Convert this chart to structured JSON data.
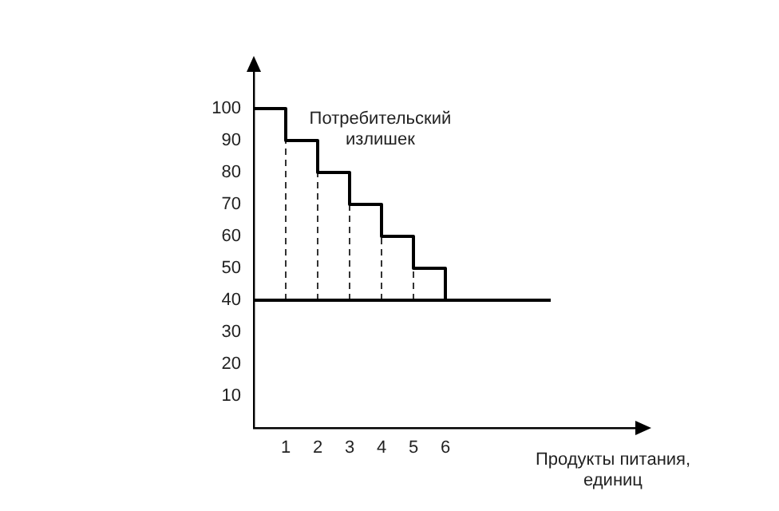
{
  "chart_data": {
    "type": "step",
    "xlabel": "Продукты питания, единиц",
    "xlim": [
      0,
      12
    ],
    "xticks": [
      1,
      2,
      3,
      4,
      5,
      6
    ],
    "ylim": [
      0,
      112
    ],
    "yticks": [
      10,
      20,
      30,
      40,
      50,
      60,
      70,
      80,
      90,
      100
    ],
    "grid": false,
    "legend": false,
    "marker": "none",
    "series": [
      {
        "color": "#000000",
        "line_style": "solid",
        "x": [
          0,
          1,
          2,
          3,
          4,
          5,
          6
        ],
        "values": [
          100,
          90,
          80,
          70,
          60,
          50,
          40
        ]
      },
      {
        "type": "line",
        "color": "#000000",
        "line_style": "solid",
        "x": [
          0,
          9.3
        ],
        "values": [
          40,
          40
        ]
      },
      {
        "type": "line",
        "color": "#000000",
        "line_style": "dashed",
        "x": [
          1,
          1
        ],
        "values": [
          40,
          90
        ]
      },
      {
        "type": "line",
        "color": "#000000",
        "line_style": "dashed",
        "x": [
          2,
          2
        ],
        "values": [
          40,
          80
        ]
      },
      {
        "type": "line",
        "color": "#000000",
        "line_style": "dashed",
        "x": [
          3,
          3
        ],
        "values": [
          40,
          70
        ]
      },
      {
        "type": "line",
        "color": "#000000",
        "line_style": "dashed",
        "x": [
          4,
          4
        ],
        "values": [
          40,
          60
        ]
      },
      {
        "type": "line",
        "color": "#000000",
        "line_style": "dashed",
        "x": [
          5,
          5
        ],
        "values": [
          40,
          50
        ]
      }
    ],
    "annotations": [
      "Потребительский излишек"
    ]
  }
}
